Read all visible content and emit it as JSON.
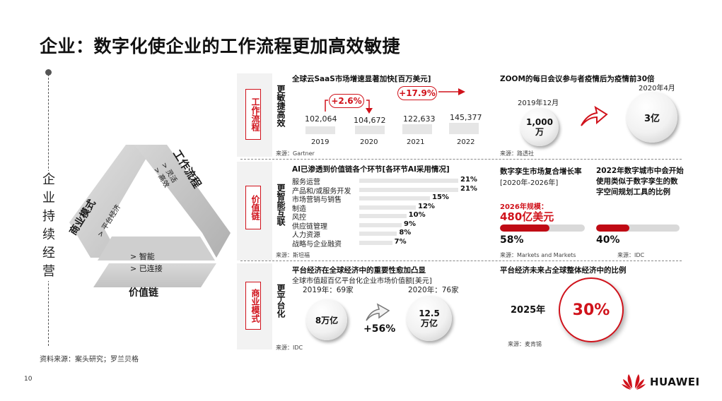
{
  "title": "企业：数字化使企业的工作流程更加高效敏捷",
  "left": {
    "vertical_text": "企业持续经营",
    "triangle": {
      "workflow": {
        "label": "工作流程",
        "items": [
          "> 灵活",
          "> 高效"
        ]
      },
      "business": {
        "label": "商业模式",
        "items": [
          "> 平台经济"
        ]
      },
      "value": {
        "label": "价值链",
        "items": [
          "> 智能",
          "> 已连接"
        ]
      }
    },
    "source": "资料来源：案头研究；罗兰贝格"
  },
  "row1": {
    "tag": "工作流程",
    "label": "更敏捷高效",
    "saas": {
      "heading": "全球云SaaS市场增速显著加快[百万美元]",
      "years": [
        "2019",
        "2020",
        "2021",
        "2022"
      ],
      "values": [
        "102,064",
        "104,672",
        "122,633",
        "145,377"
      ],
      "growth1": "+2.6%",
      "growth2": "+17.9%",
      "source": "来源：Gartner"
    },
    "zoom": {
      "heading": "ZOOM的每日会议参与者疫情后为疫情前30倍",
      "before_date": "2019年12月",
      "before_value": "1,000万",
      "after_date": "2020年4月",
      "after_value": "3亿",
      "source": "来源：路透社"
    }
  },
  "row2": {
    "tag": "价值链",
    "label": "更智能互联",
    "ai": {
      "heading": "AI已渗透到价值链各个环节[各环节AI采用情况]",
      "items": [
        {
          "label": "服务运营",
          "pct": "21%",
          "value": 21
        },
        {
          "label": "产品和/或服务开发",
          "pct": "21%",
          "value": 21
        },
        {
          "label": "市场营销与销售",
          "pct": "15%",
          "value": 15
        },
        {
          "label": "制造",
          "pct": "12%",
          "value": 12
        },
        {
          "label": "风控",
          "pct": "10%",
          "value": 10
        },
        {
          "label": "供应链管理",
          "pct": "9%",
          "value": 9
        },
        {
          "label": "人力资源",
          "pct": "8%",
          "value": 8
        },
        {
          "label": "战略与企业融资",
          "pct": "7%",
          "value": 7
        }
      ],
      "source": "来源：斯坦福"
    },
    "twin": {
      "heading": "数字孪生市场复合增长率",
      "period": "[2020年-2026年]",
      "scale_label": "2026年规模：",
      "scale_value": "480亿美元",
      "pct": "58%",
      "value": 58,
      "source": "来源：Markets and Markets"
    },
    "city": {
      "heading": "2022年数字城市中会开始使用类似于数字孪生的数字空间规划工具的比例",
      "pct": "40%",
      "value": 40,
      "source": "来源：IDC"
    }
  },
  "row3": {
    "tag": "商业模式",
    "label": "更平台化",
    "platform": {
      "heading": "平台经济在全球经济中的重要性愈加凸显",
      "subheading": "全球市值超百亿平台化企业市场价值额[美元]",
      "y2019": "2019年：69家",
      "y2020": "2020年：76家",
      "v2019": "8万亿",
      "v2020": "12.5万亿",
      "growth": "+56%",
      "source": "来源：IDC"
    },
    "future": {
      "heading": "平台经济未来占全球整体经济中的比例",
      "year": "2025年",
      "pct": "30%",
      "source": "来源：麦肯锡"
    }
  },
  "footer": {
    "page": "10",
    "brand": "HUAWEI"
  },
  "colors": {
    "accent": "#d0121b",
    "gray": "#e6e6e6"
  }
}
